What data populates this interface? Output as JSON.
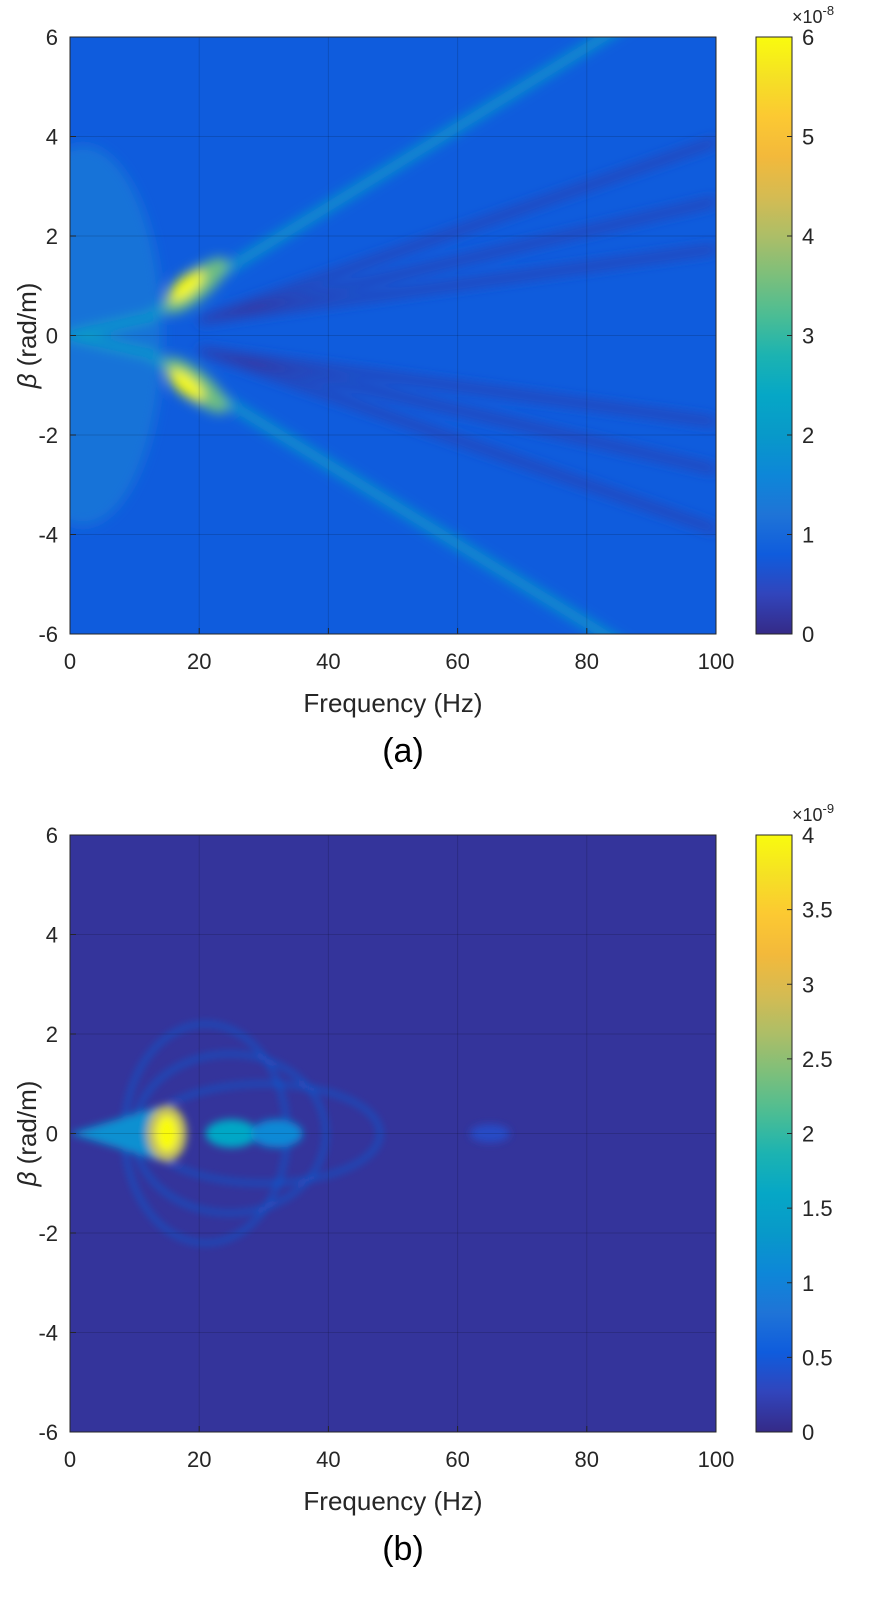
{
  "chart_data": [
    {
      "type": "heatmap",
      "panel_label": "(a)",
      "xlabel": "Frequency (Hz)",
      "ylabel_symbol": "β",
      "ylabel_unit": " (rad/m)",
      "xlim": [
        0,
        100
      ],
      "ylim": [
        -6,
        6
      ],
      "xticks": [
        0,
        20,
        40,
        60,
        80,
        100
      ],
      "yticks": [
        -6,
        -4,
        -2,
        0,
        2,
        4,
        6
      ],
      "xtick_labels": [
        "0",
        "20",
        "40",
        "60",
        "80",
        "100"
      ],
      "ytick_labels": [
        "-6",
        "-4",
        "-2",
        "0",
        "2",
        "4",
        "6"
      ],
      "grid": true,
      "colormap": "parula",
      "colorbar": {
        "ticks": [
          0,
          1,
          2,
          3,
          4,
          5,
          6
        ],
        "tick_labels": [
          "0",
          "1",
          "2",
          "3",
          "4",
          "5",
          "6"
        ],
        "range": [
          0,
          6
        ],
        "multiplier_base": "×10",
        "multiplier_exp": "-8"
      },
      "features": [
        {
          "kind": "peak",
          "f": 18,
          "beta": 1.0,
          "value": 6.0
        },
        {
          "kind": "peak",
          "f": 18,
          "beta": -1.0,
          "value": 6.0
        },
        {
          "kind": "ridge",
          "f_start": 10,
          "f_end": 80,
          "beta_per_hz": 0.08,
          "value": 2.0
        },
        {
          "kind": "background",
          "value": 0.8
        }
      ]
    },
    {
      "type": "heatmap",
      "panel_label": "(b)",
      "xlabel": "Frequency (Hz)",
      "ylabel_symbol": "β",
      "ylabel_unit": " (rad/m)",
      "xlim": [
        0,
        100
      ],
      "ylim": [
        -6,
        6
      ],
      "xticks": [
        0,
        20,
        40,
        60,
        80,
        100
      ],
      "yticks": [
        -6,
        -4,
        -2,
        0,
        2,
        4,
        6
      ],
      "xtick_labels": [
        "0",
        "20",
        "40",
        "60",
        "80",
        "100"
      ],
      "ytick_labels": [
        "-6",
        "-4",
        "-2",
        "0",
        "2",
        "4",
        "6"
      ],
      "grid": true,
      "colormap": "parula",
      "colorbar": {
        "ticks": [
          0,
          0.5,
          1,
          1.5,
          2,
          2.5,
          3,
          3.5,
          4
        ],
        "tick_labels": [
          "0",
          "0.5",
          "1",
          "1.5",
          "2",
          "2.5",
          "3",
          "3.5",
          "4"
        ],
        "range": [
          0,
          4
        ],
        "multiplier_base": "×10",
        "multiplier_exp": "-9"
      },
      "features": [
        {
          "kind": "peak",
          "f": 15,
          "beta": 0,
          "value": 4.0
        },
        {
          "kind": "blob",
          "f": 25,
          "beta": 0,
          "value": 1.6
        },
        {
          "kind": "blob",
          "f": 32,
          "beta": 0,
          "value": 1.1
        },
        {
          "kind": "blob",
          "f": 65,
          "beta": 0,
          "value": 0.35
        },
        {
          "kind": "background",
          "value": 0.1
        }
      ]
    }
  ]
}
